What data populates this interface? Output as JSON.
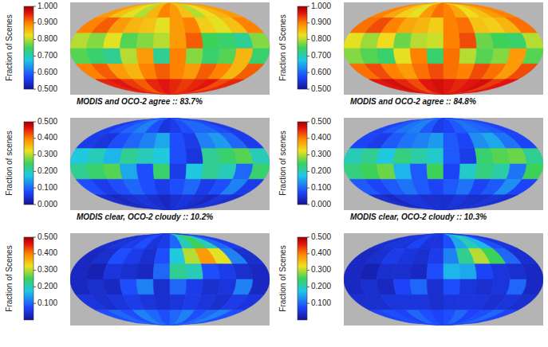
{
  "chart_data": [
    {
      "type": "heatmap",
      "title": "MODIS and OCO-2 agree :: 83.7%",
      "colorbar_label": "Fraction of Scenes",
      "colorbar_range": [
        0.5,
        1.0
      ],
      "colorbar_ticks": [
        {
          "value": 0.5,
          "label": "0.500"
        },
        {
          "value": 0.6,
          "label": "0.600"
        },
        {
          "value": 0.7,
          "label": "0.700"
        },
        {
          "value": 0.8,
          "label": "0.800"
        },
        {
          "value": 0.9,
          "label": "0.900"
        },
        {
          "value": 1.0,
          "label": "1.000"
        }
      ],
      "lon_edges": [
        -180,
        -150,
        -120,
        -90,
        -60,
        -30,
        0,
        30,
        60,
        90,
        120,
        150,
        180
      ],
      "lat_edges": [
        90,
        60,
        30,
        0,
        -30,
        -60,
        -90
      ],
      "cells": [
        [
          0.88,
          0.85,
          0.82,
          0.8,
          0.86,
          0.9,
          0.88,
          0.85,
          0.8,
          0.83,
          0.86,
          0.88
        ],
        [
          0.9,
          0.92,
          0.88,
          0.86,
          0.85,
          0.82,
          0.88,
          0.9,
          0.84,
          0.82,
          0.85,
          0.9
        ],
        [
          0.8,
          0.78,
          0.82,
          0.76,
          0.78,
          0.8,
          0.88,
          0.92,
          0.75,
          0.74,
          0.72,
          0.78
        ],
        [
          0.76,
          0.74,
          0.72,
          0.8,
          0.88,
          0.72,
          0.9,
          0.78,
          0.74,
          0.76,
          0.86,
          0.74
        ],
        [
          0.9,
          0.92,
          0.88,
          0.86,
          0.9,
          0.92,
          0.9,
          0.88,
          0.92,
          0.9,
          0.86,
          0.92
        ],
        [
          0.95,
          0.96,
          0.94,
          0.92,
          0.95,
          0.96,
          0.95,
          0.94,
          0.95,
          0.96,
          0.93,
          0.95
        ]
      ]
    },
    {
      "type": "heatmap",
      "title": "MODIS and OCO-2 agree :: 84.8%",
      "colorbar_label": "Fraction of Scenes",
      "colorbar_range": [
        0.5,
        1.0
      ],
      "colorbar_ticks": [
        {
          "value": 0.5,
          "label": "0.500"
        },
        {
          "value": 0.6,
          "label": "0.600"
        },
        {
          "value": 0.7,
          "label": "0.700"
        },
        {
          "value": 0.8,
          "label": "0.800"
        },
        {
          "value": 0.9,
          "label": "0.900"
        },
        {
          "value": 1.0,
          "label": "1.000"
        }
      ],
      "lon_edges": [
        -180,
        -150,
        -120,
        -90,
        -60,
        -30,
        0,
        30,
        60,
        90,
        120,
        150,
        180
      ],
      "lat_edges": [
        90,
        60,
        30,
        0,
        -30,
        -60,
        -90
      ],
      "cells": [
        [
          0.9,
          0.87,
          0.84,
          0.82,
          0.88,
          0.91,
          0.9,
          0.87,
          0.83,
          0.85,
          0.88,
          0.9
        ],
        [
          0.91,
          0.93,
          0.9,
          0.87,
          0.86,
          0.84,
          0.9,
          0.91,
          0.85,
          0.84,
          0.86,
          0.91
        ],
        [
          0.82,
          0.79,
          0.83,
          0.77,
          0.8,
          0.81,
          0.9,
          0.93,
          0.77,
          0.75,
          0.74,
          0.8
        ],
        [
          0.78,
          0.76,
          0.74,
          0.82,
          0.9,
          0.74,
          0.91,
          0.8,
          0.76,
          0.78,
          0.88,
          0.76
        ],
        [
          0.91,
          0.93,
          0.9,
          0.88,
          0.91,
          0.93,
          0.91,
          0.9,
          0.93,
          0.91,
          0.88,
          0.93
        ],
        [
          0.96,
          0.97,
          0.95,
          0.93,
          0.96,
          0.97,
          0.96,
          0.95,
          0.96,
          0.97,
          0.94,
          0.96
        ]
      ]
    },
    {
      "type": "heatmap",
      "title": "MODIS clear, OCO-2 cloudy :: 10.2%",
      "colorbar_label": "Fraction of scenes",
      "colorbar_range": [
        0.0,
        0.5
      ],
      "colorbar_ticks": [
        {
          "value": 0.0,
          "label": "0.000"
        },
        {
          "value": 0.1,
          "label": "0.100"
        },
        {
          "value": 0.2,
          "label": "0.200"
        },
        {
          "value": 0.3,
          "label": "0.300"
        },
        {
          "value": 0.4,
          "label": "0.400"
        },
        {
          "value": 0.5,
          "label": "0.500"
        }
      ],
      "lon_edges": [
        -180,
        -150,
        -120,
        -90,
        -60,
        -30,
        0,
        30,
        60,
        90,
        120,
        150,
        180
      ],
      "lat_edges": [
        90,
        60,
        30,
        0,
        -30,
        -60,
        -90
      ],
      "cells": [
        [
          0.06,
          0.08,
          0.1,
          0.12,
          0.08,
          0.05,
          0.06,
          0.08,
          0.1,
          0.1,
          0.08,
          0.06
        ],
        [
          0.06,
          0.05,
          0.08,
          0.1,
          0.12,
          0.15,
          0.08,
          0.06,
          0.12,
          0.14,
          0.1,
          0.06
        ],
        [
          0.18,
          0.2,
          0.16,
          0.22,
          0.2,
          0.18,
          0.08,
          0.05,
          0.22,
          0.24,
          0.26,
          0.2
        ],
        [
          0.22,
          0.24,
          0.26,
          0.15,
          0.08,
          0.24,
          0.06,
          0.18,
          0.22,
          0.2,
          0.1,
          0.24
        ],
        [
          0.08,
          0.06,
          0.08,
          0.1,
          0.08,
          0.06,
          0.08,
          0.1,
          0.06,
          0.08,
          0.12,
          0.06
        ],
        [
          0.04,
          0.03,
          0.04,
          0.05,
          0.04,
          0.03,
          0.04,
          0.05,
          0.04,
          0.03,
          0.05,
          0.04
        ]
      ]
    },
    {
      "type": "heatmap",
      "title": "MODIS clear, OCO-2 cloudy :: 10.3%",
      "colorbar_label": "Fraction of scenes",
      "colorbar_range": [
        0.0,
        0.5
      ],
      "colorbar_ticks": [
        {
          "value": 0.0,
          "label": "0.000"
        },
        {
          "value": 0.1,
          "label": "0.100"
        },
        {
          "value": 0.2,
          "label": "0.200"
        },
        {
          "value": 0.3,
          "label": "0.300"
        },
        {
          "value": 0.4,
          "label": "0.400"
        },
        {
          "value": 0.5,
          "label": "0.500"
        }
      ],
      "lon_edges": [
        -180,
        -150,
        -120,
        -90,
        -60,
        -30,
        0,
        30,
        60,
        90,
        120,
        150,
        180
      ],
      "lat_edges": [
        90,
        60,
        30,
        0,
        -30,
        -60,
        -90
      ],
      "cells": [
        [
          0.07,
          0.09,
          0.11,
          0.12,
          0.09,
          0.06,
          0.07,
          0.09,
          0.11,
          0.1,
          0.09,
          0.07
        ],
        [
          0.07,
          0.06,
          0.09,
          0.11,
          0.12,
          0.14,
          0.09,
          0.07,
          0.13,
          0.15,
          0.11,
          0.07
        ],
        [
          0.2,
          0.22,
          0.18,
          0.23,
          0.21,
          0.19,
          0.09,
          0.06,
          0.24,
          0.26,
          0.27,
          0.22
        ],
        [
          0.23,
          0.25,
          0.27,
          0.16,
          0.09,
          0.25,
          0.07,
          0.19,
          0.23,
          0.21,
          0.11,
          0.25
        ],
        [
          0.09,
          0.07,
          0.09,
          0.11,
          0.09,
          0.07,
          0.09,
          0.11,
          0.07,
          0.09,
          0.13,
          0.07
        ],
        [
          0.04,
          0.03,
          0.05,
          0.05,
          0.04,
          0.04,
          0.04,
          0.05,
          0.04,
          0.04,
          0.05,
          0.04
        ]
      ]
    },
    {
      "type": "heatmap",
      "colorbar_label": "Fraction of Scenes",
      "colorbar_range": [
        0.0,
        0.5
      ],
      "colorbar_ticks": [
        {
          "value": 0.1,
          "label": "0.100"
        },
        {
          "value": 0.2,
          "label": "0.200"
        },
        {
          "value": 0.3,
          "label": "0.300"
        },
        {
          "value": 0.4,
          "label": "0.400"
        },
        {
          "value": 0.5,
          "label": "0.500"
        }
      ],
      "lon_edges": [
        -180,
        -150,
        -120,
        -90,
        -60,
        -30,
        0,
        30,
        60,
        90,
        120,
        150,
        180
      ],
      "lat_edges": [
        90,
        60,
        30,
        0,
        -30,
        -60,
        -90
      ],
      "cells": [
        [
          0.04,
          0.05,
          0.06,
          0.08,
          0.05,
          0.06,
          0.1,
          0.2,
          0.25,
          0.2,
          0.1,
          0.06
        ],
        [
          0.03,
          0.04,
          0.08,
          0.06,
          0.04,
          0.08,
          0.18,
          0.3,
          0.38,
          0.32,
          0.12,
          0.04
        ],
        [
          0.03,
          0.02,
          0.05,
          0.04,
          0.03,
          0.1,
          0.22,
          0.2,
          0.08,
          0.06,
          0.04,
          0.03
        ],
        [
          0.03,
          0.04,
          0.03,
          0.08,
          0.12,
          0.04,
          0.1,
          0.06,
          0.04,
          0.05,
          0.12,
          0.03
        ],
        [
          0.05,
          0.04,
          0.05,
          0.06,
          0.05,
          0.04,
          0.05,
          0.06,
          0.05,
          0.04,
          0.06,
          0.05
        ],
        [
          0.08,
          0.1,
          0.08,
          0.12,
          0.1,
          0.08,
          0.1,
          0.12,
          0.08,
          0.1,
          0.12,
          0.08
        ]
      ]
    },
    {
      "type": "heatmap",
      "colorbar_label": "Fraction of Scenes",
      "colorbar_range": [
        0.0,
        0.5
      ],
      "colorbar_ticks": [
        {
          "value": 0.1,
          "label": "0.100"
        },
        {
          "value": 0.2,
          "label": "0.200"
        },
        {
          "value": 0.3,
          "label": "0.300"
        },
        {
          "value": 0.4,
          "label": "0.400"
        },
        {
          "value": 0.5,
          "label": "0.500"
        }
      ],
      "lon_edges": [
        -180,
        -150,
        -120,
        -90,
        -60,
        -30,
        0,
        30,
        60,
        90,
        120,
        150,
        180
      ],
      "lat_edges": [
        90,
        60,
        30,
        0,
        -30,
        -60,
        -90
      ],
      "cells": [
        [
          0.04,
          0.05,
          0.05,
          0.07,
          0.05,
          0.05,
          0.08,
          0.15,
          0.2,
          0.16,
          0.08,
          0.05
        ],
        [
          0.03,
          0.04,
          0.06,
          0.05,
          0.04,
          0.06,
          0.12,
          0.22,
          0.3,
          0.25,
          0.1,
          0.04
        ],
        [
          0.03,
          0.02,
          0.04,
          0.04,
          0.03,
          0.08,
          0.16,
          0.15,
          0.07,
          0.05,
          0.04,
          0.03
        ],
        [
          0.03,
          0.04,
          0.03,
          0.07,
          0.1,
          0.04,
          0.08,
          0.05,
          0.04,
          0.05,
          0.1,
          0.03
        ],
        [
          0.04,
          0.04,
          0.05,
          0.05,
          0.05,
          0.04,
          0.05,
          0.05,
          0.05,
          0.04,
          0.05,
          0.04
        ],
        [
          0.07,
          0.08,
          0.07,
          0.1,
          0.08,
          0.07,
          0.08,
          0.1,
          0.07,
          0.08,
          0.1,
          0.07
        ]
      ]
    }
  ]
}
